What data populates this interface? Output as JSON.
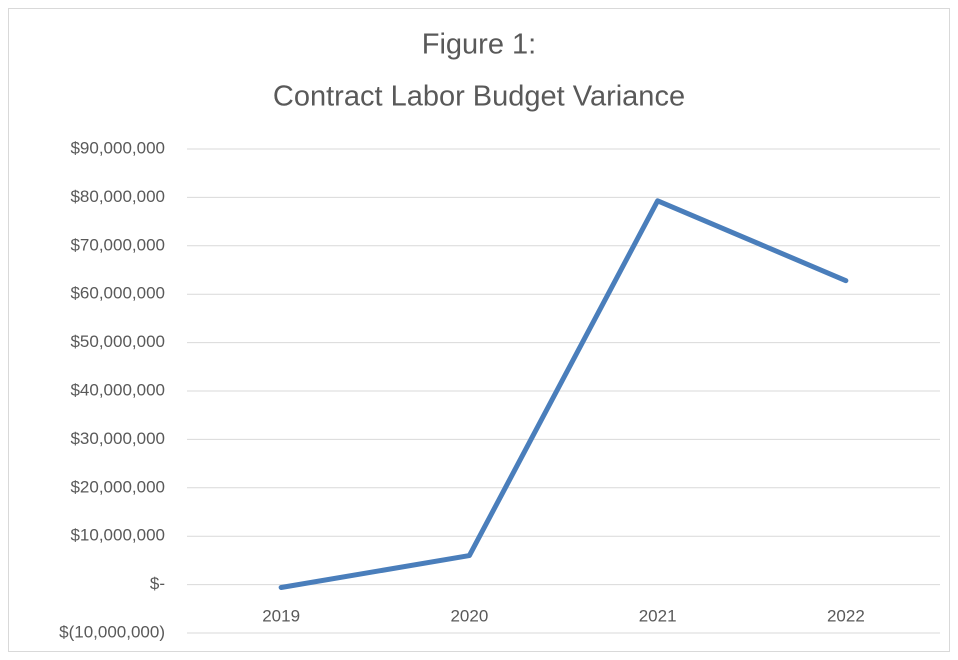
{
  "chart_data": {
    "type": "line",
    "title": [
      "Figure 1:",
      "Contract Labor Budget Variance"
    ],
    "categories": [
      "2019",
      "2020",
      "2021",
      "2022"
    ],
    "series": [
      {
        "name": "Contract Labor Budget Variance",
        "color": "#4a7ebb",
        "values": [
          -600000,
          6000000,
          79300000,
          62800000
        ]
      }
    ],
    "ylim": [
      -10000000,
      90000000
    ],
    "yticks": [
      {
        "value": -10000000,
        "label": "$(10,000,000)"
      },
      {
        "value": 0,
        "label": "$-"
      },
      {
        "value": 10000000,
        "label": "$10,000,000"
      },
      {
        "value": 20000000,
        "label": "$20,000,000"
      },
      {
        "value": 30000000,
        "label": "$30,000,000"
      },
      {
        "value": 40000000,
        "label": "$40,000,000"
      },
      {
        "value": 50000000,
        "label": "$50,000,000"
      },
      {
        "value": 60000000,
        "label": "$60,000,000"
      },
      {
        "value": 70000000,
        "label": "$70,000,000"
      },
      {
        "value": 80000000,
        "label": "$80,000,000"
      },
      {
        "value": 90000000,
        "label": "$90,000,000"
      }
    ],
    "grid": true
  }
}
